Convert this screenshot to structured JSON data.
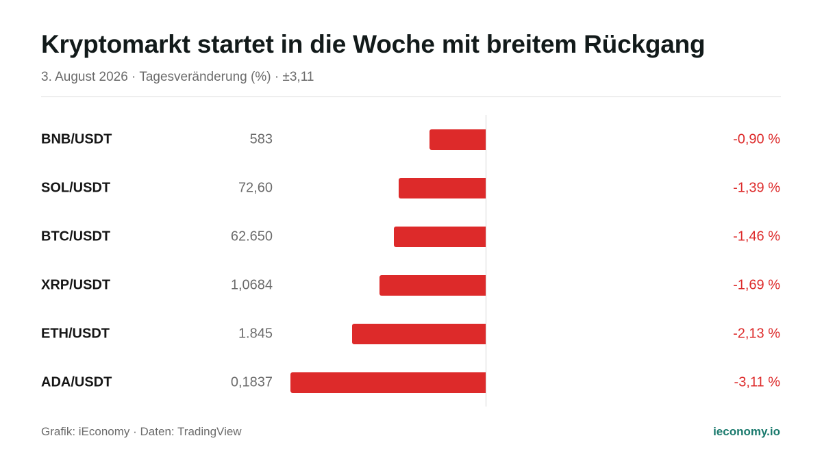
{
  "header": {
    "title": "Kryptomarkt startet in die Woche mit breitem Rückgang",
    "subtitle": "3. August 2026 · Tagesveränderung (%) · ±3,11"
  },
  "footer": {
    "source": "Grafik: iEconomy · Daten: TradingView",
    "brand": "ieconomy.io"
  },
  "colors": {
    "negative": "#dd2a2a",
    "brand": "#1a7a6d"
  },
  "chart_data": {
    "type": "bar",
    "orientation": "horizontal",
    "title": "Kryptomarkt startet in die Woche mit breitem Rückgang",
    "subtitle": "3. August 2026 · Tagesveränderung (%) · ±3,11",
    "xlim": [
      -3.11,
      3.11
    ],
    "grid": false,
    "legend": "none",
    "categories": [
      "BNB/USDT",
      "SOL/USDT",
      "BTC/USDT",
      "XRP/USDT",
      "ETH/USDT",
      "ADA/USDT"
    ],
    "prices": [
      "583",
      "72,60",
      "62.650",
      "1,0684",
      "1.845",
      "0,1837"
    ],
    "values": [
      -0.9,
      -1.39,
      -1.46,
      -1.69,
      -2.13,
      -3.11
    ],
    "value_labels": [
      "-0,90 %",
      "-1,39 %",
      "-1,46 %",
      "-1,69 %",
      "-2,13 %",
      "-3,11 %"
    ]
  }
}
